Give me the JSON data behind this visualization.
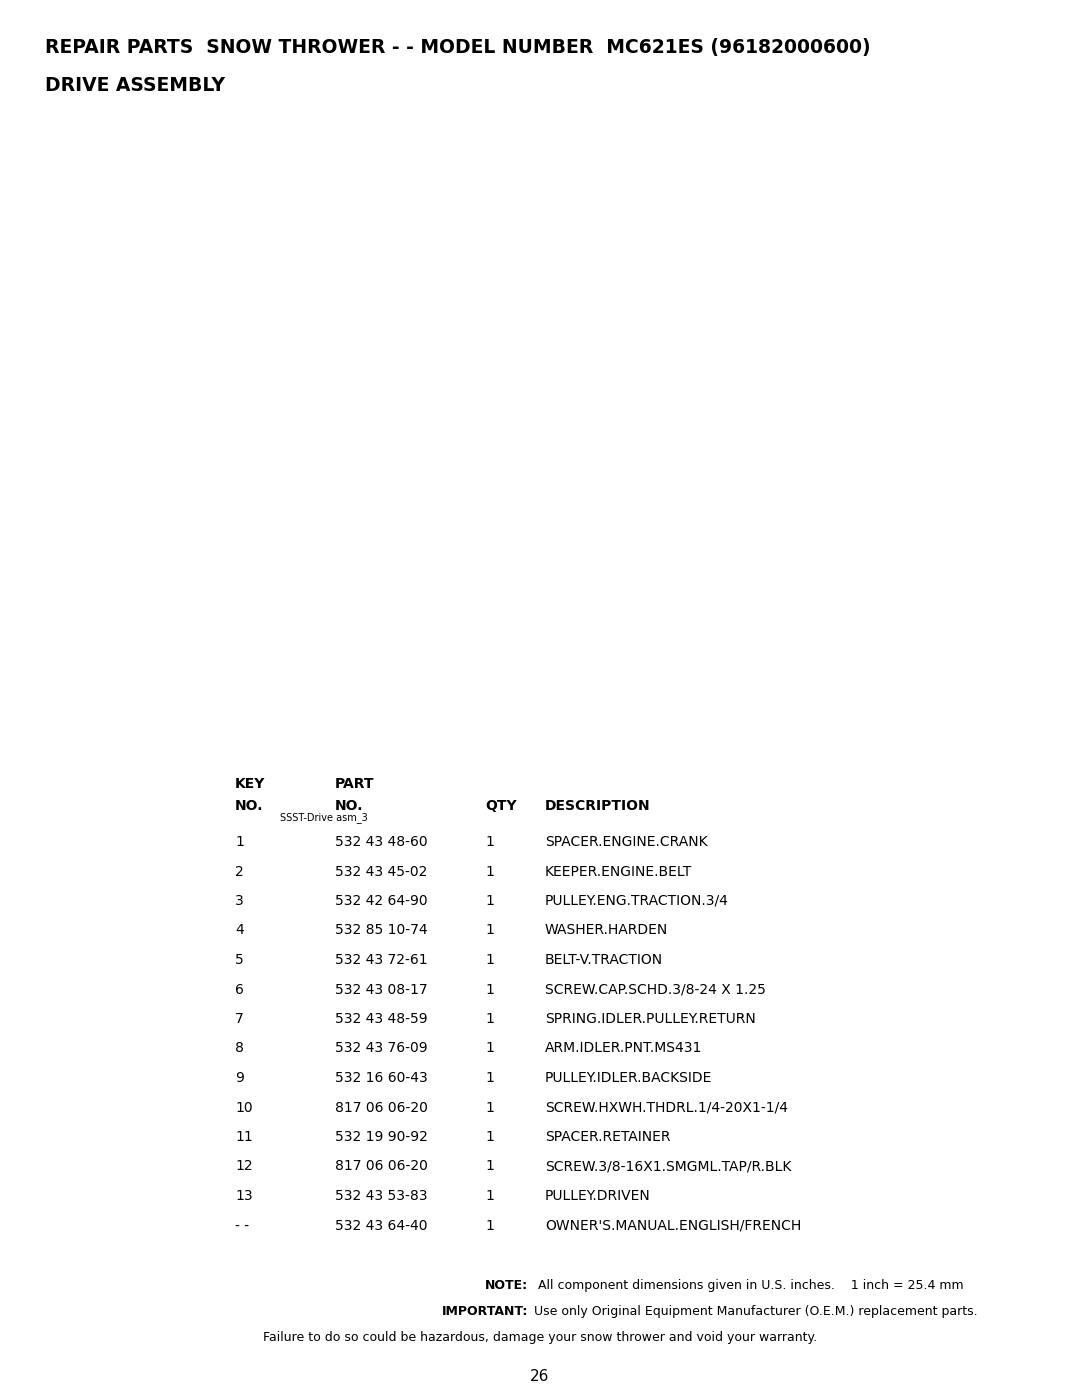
{
  "title_line1": "REPAIR PARTS  SNOW THROWER - - MODEL NUMBER  MC621ES (96182000600)",
  "title_line2": "DRIVE ASSEMBLY",
  "bg_color": "#ffffff",
  "table_data": [
    [
      "1",
      "532 43 48-60",
      "1",
      "SPACER.ENGINE.CRANK"
    ],
    [
      "2",
      "532 43 45-02",
      "1",
      "KEEPER.ENGINE.BELT"
    ],
    [
      "3",
      "532 42 64-90",
      "1",
      "PULLEY.ENG.TRACTION.3/4"
    ],
    [
      "4",
      "532 85 10-74",
      "1",
      "WASHER.HARDEN"
    ],
    [
      "5",
      "532 43 72-61",
      "1",
      "BELT-V.TRACTION"
    ],
    [
      "6",
      "532 43 08-17",
      "1",
      "SCREW.CAP.SCHD.3/8-24 X 1.25"
    ],
    [
      "7",
      "532 43 48-59",
      "1",
      "SPRING.IDLER.PULLEY.RETURN"
    ],
    [
      "8",
      "532 43 76-09",
      "1",
      "ARM.IDLER.PNT.MS431"
    ],
    [
      "9",
      "532 16 60-43",
      "1",
      "PULLEY.IDLER.BACKSIDE"
    ],
    [
      "10",
      "817 06 06-20",
      "1",
      "SCREW.HXWH.THDRL.1/4-20X1-1/4"
    ],
    [
      "11",
      "532 19 90-92",
      "1",
      "SPACER.RETAINER"
    ],
    [
      "12",
      "817 06 06-20",
      "1",
      "SCREW.3/8-16X1.SMGML.TAP/R.BLK"
    ],
    [
      "13",
      "532 43 53-83",
      "1",
      "PULLEY.DRIVEN"
    ],
    [
      "- -",
      "532 43 64-40",
      "1",
      "OWNER'S.MANUAL.ENGLISH/FRENCH"
    ]
  ],
  "note_bold": "NOTE:",
  "note_text": "  All component dimensions given in U.S. inches.    1 inch = 25.4 mm",
  "important_bold": "IMPORTANT:",
  "important_text": " Use only Original Equipment Manufacturer (O.E.M.) replacement parts.",
  "failure_text": "Failure to do so could be hazardous, damage your snow thrower and void your warranty.",
  "page_number": "26",
  "diagram_label": "SSST-Drive asm_3",
  "fig_width": 10.8,
  "fig_height": 13.97,
  "dpi": 100
}
